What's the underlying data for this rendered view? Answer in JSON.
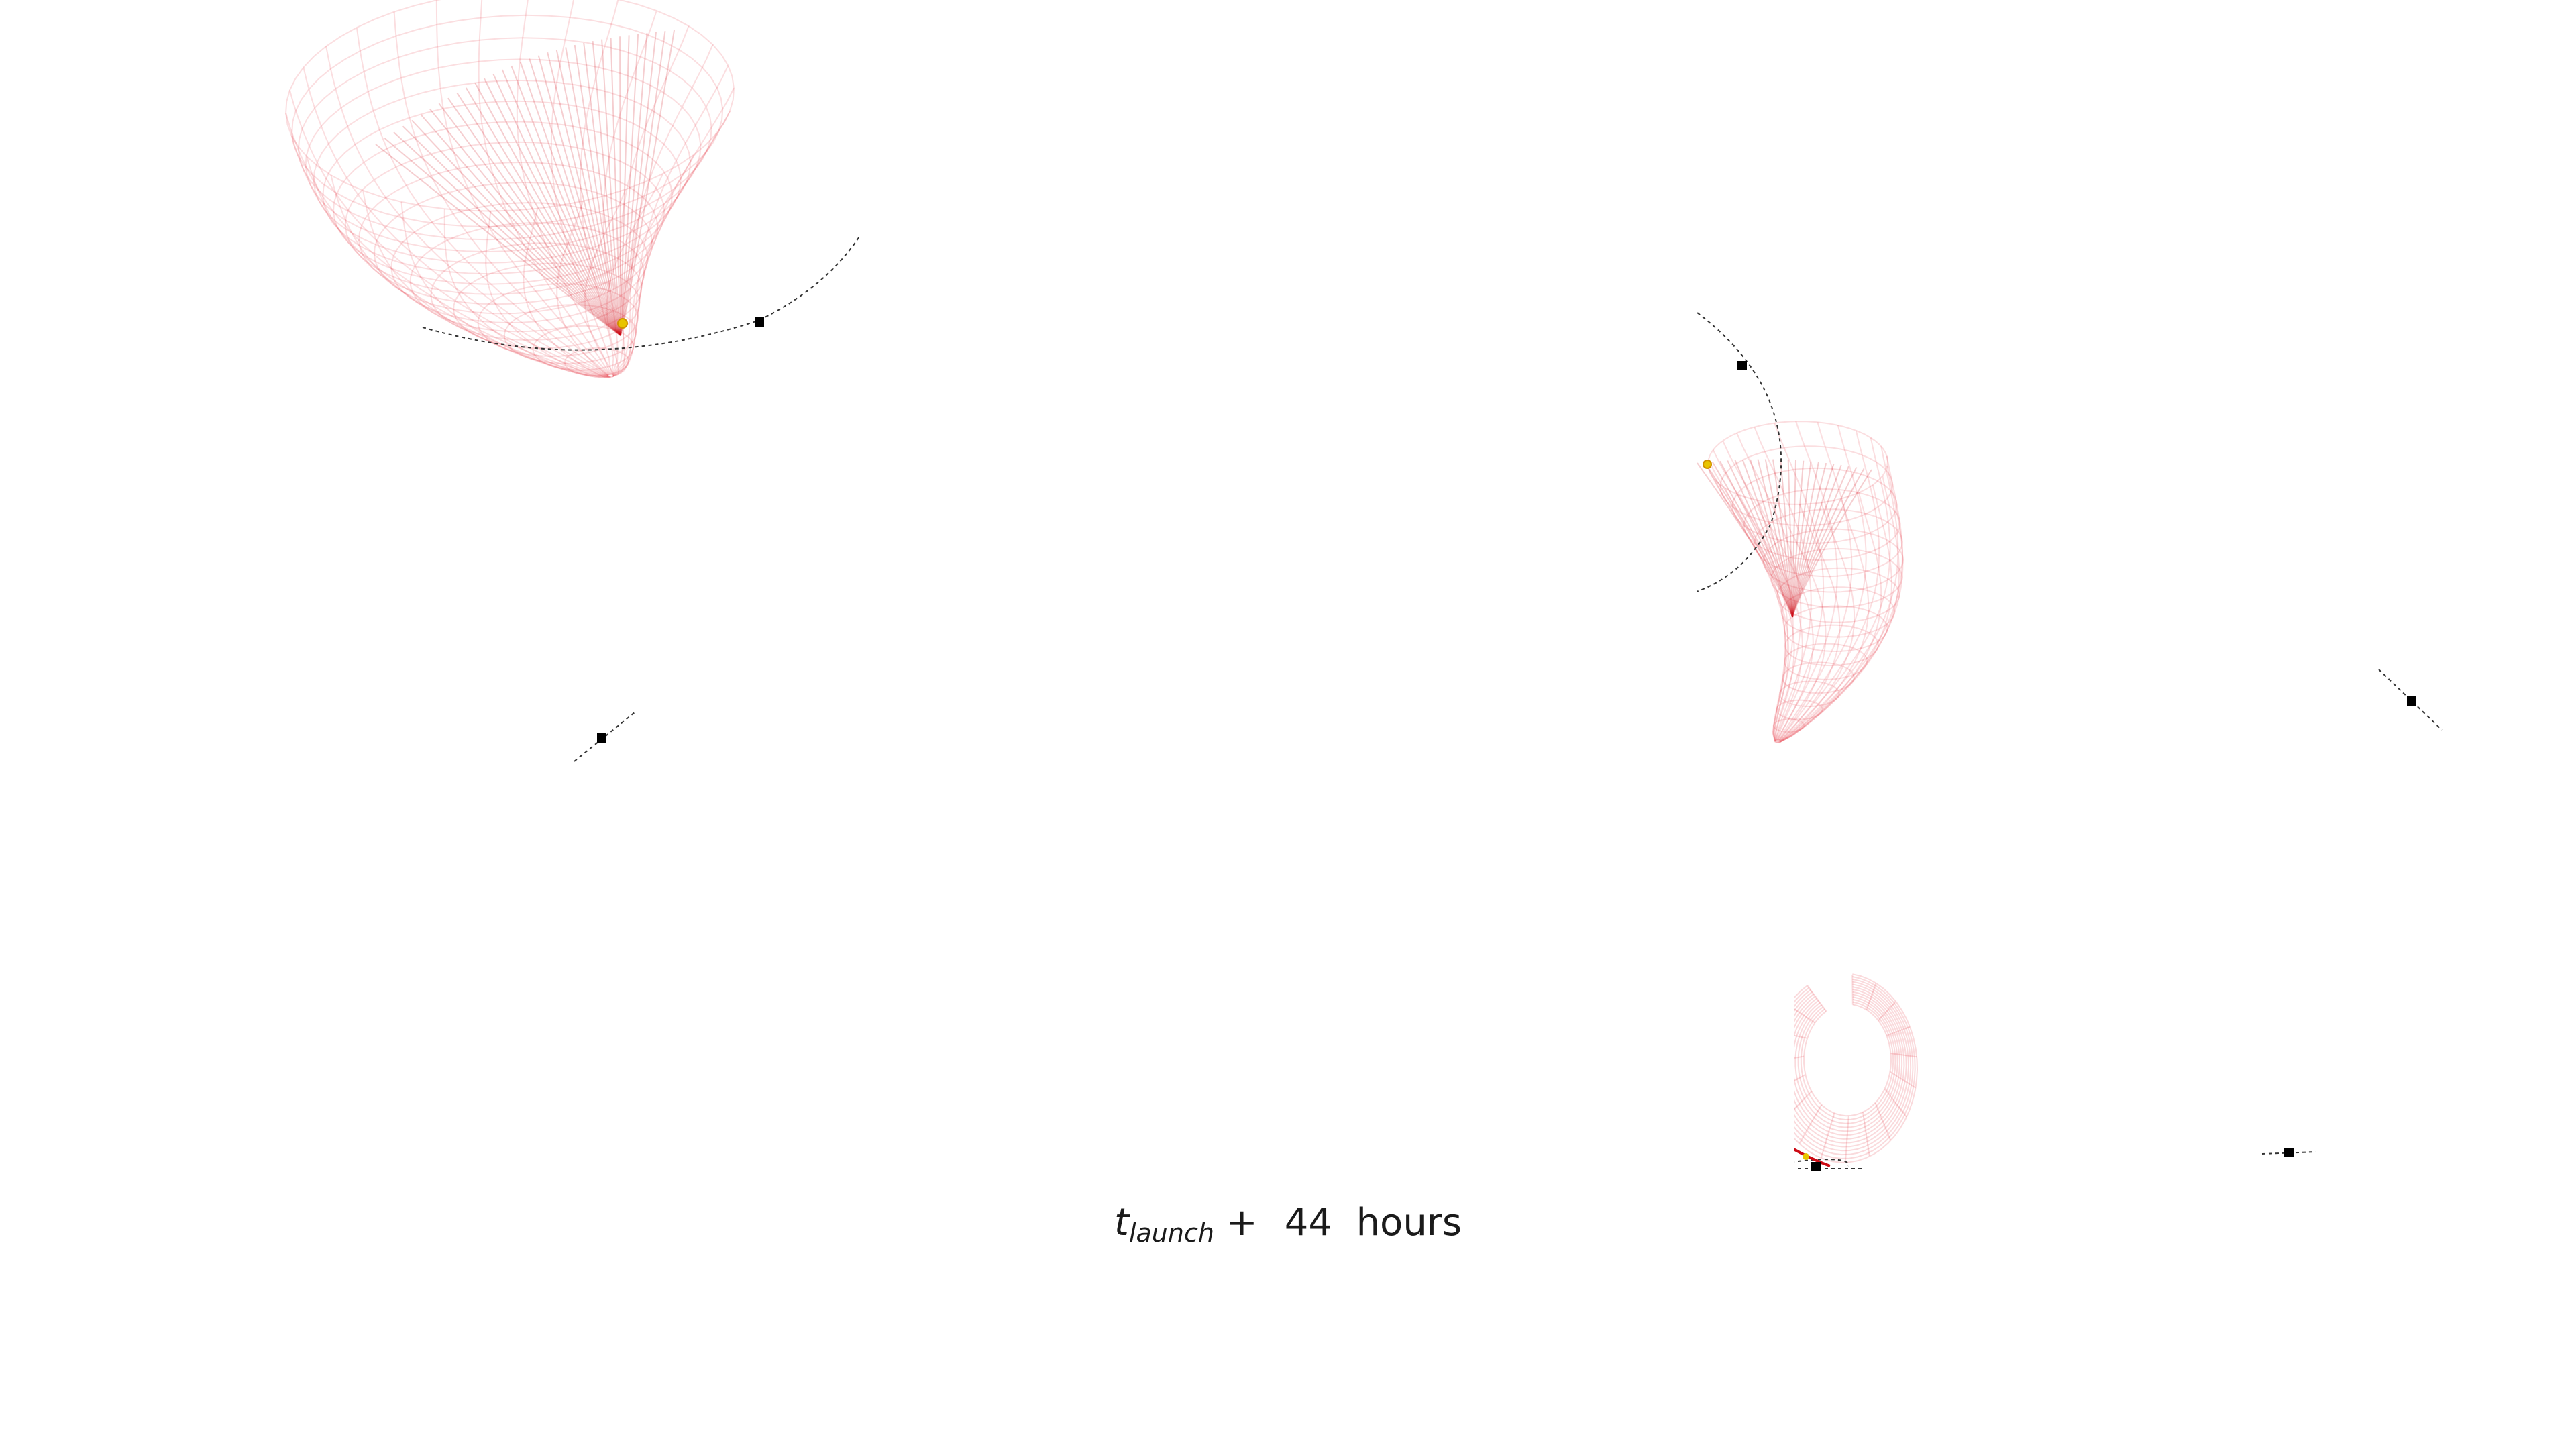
{
  "caption": {
    "symbol": "t",
    "subscript": "launch",
    "plus": "+",
    "hours_value": "44",
    "unit": "hours"
  },
  "colors": {
    "mesh": "#e6323c",
    "mesh_core": "#cc0a14",
    "trajectory": "#333333",
    "marker": "#000000",
    "spacecraft": "#e8c400",
    "background": "#ffffff"
  },
  "panels": [
    {
      "name": "view-1",
      "style": "mesh-bowl-large",
      "has_spacecraft": true
    },
    {
      "name": "view-2",
      "style": "mesh-bowl-clipped",
      "has_spacecraft": true
    },
    {
      "name": "view-3",
      "style": "marker-only",
      "has_spacecraft": false
    },
    {
      "name": "view-4",
      "style": "marker-only",
      "has_spacecraft": false
    },
    {
      "name": "view-5",
      "style": "mesh-ring-small",
      "has_spacecraft": true
    },
    {
      "name": "view-6",
      "style": "marker-only",
      "has_spacecraft": false
    }
  ]
}
